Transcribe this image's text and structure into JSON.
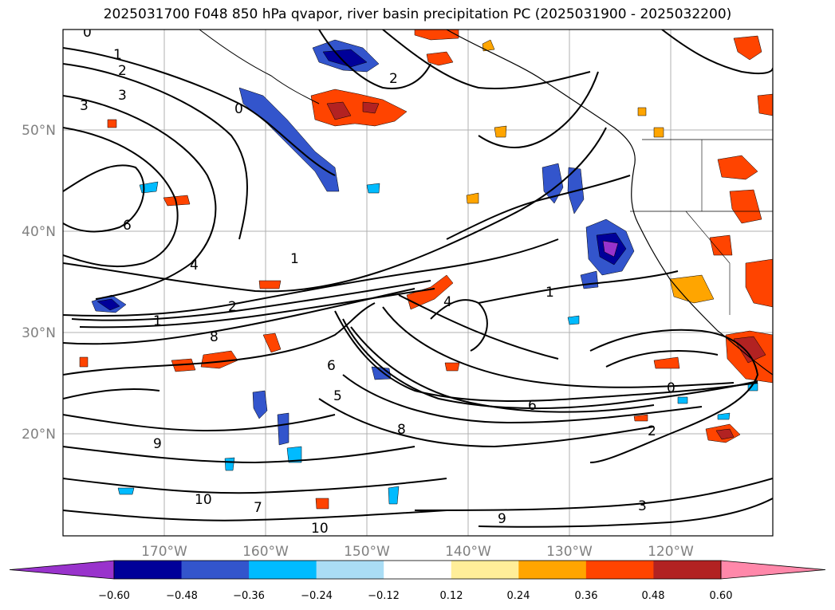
{
  "title": "2025031700 F048 850 hPa qvapor, river basin precipitation PC (2025031900 - 2025032200)",
  "map": {
    "lon_labels": [
      "170°W",
      "160°W",
      "150°W",
      "140°W",
      "130°W",
      "120°W"
    ],
    "lat_labels": [
      "50°N",
      "40°N",
      "30°N",
      "20°N"
    ],
    "contour_labels": [
      "0",
      "1",
      "2",
      "3",
      "4",
      "6",
      "8",
      "9",
      "10",
      "7",
      "5",
      "0",
      "1",
      "2",
      "3",
      "6",
      "8",
      "1",
      "2",
      "4",
      "6",
      "9",
      "10",
      "3",
      "2",
      "0",
      "1"
    ]
  },
  "colorbar": {
    "ticks": [
      "−0.60",
      "−0.48",
      "−0.36",
      "−0.24",
      "−0.12",
      "0.12",
      "0.24",
      "0.36",
      "0.48",
      "0.60"
    ],
    "colors": [
      "#9933cc",
      "#000099",
      "#3355cc",
      "#00bbff",
      "#aaddf5",
      "#ffffff",
      "#ffee99",
      "#ffa500",
      "#ff4400",
      "#b22222",
      "#ff88aa"
    ]
  }
}
